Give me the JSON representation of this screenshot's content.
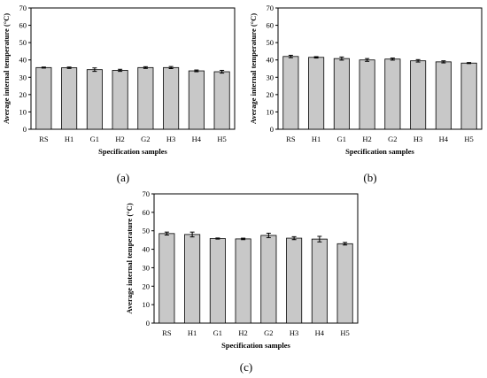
{
  "chart_data": [
    {
      "type": "bar",
      "panel_label": "(a)",
      "categories": [
        "RS",
        "H1",
        "G1",
        "H2",
        "G2",
        "H3",
        "H4",
        "H5"
      ],
      "values": [
        35.6,
        35.5,
        34.4,
        34.0,
        35.6,
        35.6,
        33.7,
        33.2
      ],
      "errors": [
        0.3,
        0.4,
        1.0,
        0.6,
        0.5,
        0.6,
        0.5,
        0.8
      ],
      "xlabel": "Specification samples",
      "ylabel": "Average internal temperature (°C)",
      "ylim": [
        0,
        70
      ],
      "yticks": [
        0,
        10,
        20,
        30,
        40,
        50,
        60,
        70
      ],
      "bar_color": "#c8c8c8",
      "grid": false
    },
    {
      "type": "bar",
      "panel_label": "(b)",
      "categories": [
        "RS",
        "H1",
        "G1",
        "H2",
        "G2",
        "H3",
        "H4",
        "H5"
      ],
      "values": [
        42.0,
        41.5,
        40.8,
        40.0,
        40.5,
        39.5,
        38.9,
        38.2
      ],
      "errors": [
        0.7,
        0.4,
        0.9,
        0.8,
        0.6,
        0.7,
        0.6,
        0.3
      ],
      "xlabel": "Specification samples",
      "ylabel": "Average internal temperature (°C)",
      "ylim": [
        0,
        70
      ],
      "yticks": [
        0,
        10,
        20,
        30,
        40,
        50,
        60,
        70
      ],
      "bar_color": "#c8c8c8",
      "grid": false
    },
    {
      "type": "bar",
      "panel_label": "(c)",
      "categories": [
        "RS",
        "H1",
        "G1",
        "H2",
        "G2",
        "H3",
        "H4",
        "H5"
      ],
      "values": [
        48.5,
        48.0,
        45.8,
        45.6,
        47.5,
        46.0,
        45.5,
        43.0
      ],
      "errors": [
        0.8,
        1.3,
        0.3,
        0.4,
        1.2,
        0.8,
        1.5,
        0.7
      ],
      "xlabel": "Specification samples",
      "ylabel": "Average internal temperature (°C)",
      "ylim": [
        0,
        70
      ],
      "yticks": [
        0,
        10,
        20,
        30,
        40,
        50,
        60,
        70
      ],
      "bar_color": "#c8c8c8",
      "grid": false
    }
  ]
}
